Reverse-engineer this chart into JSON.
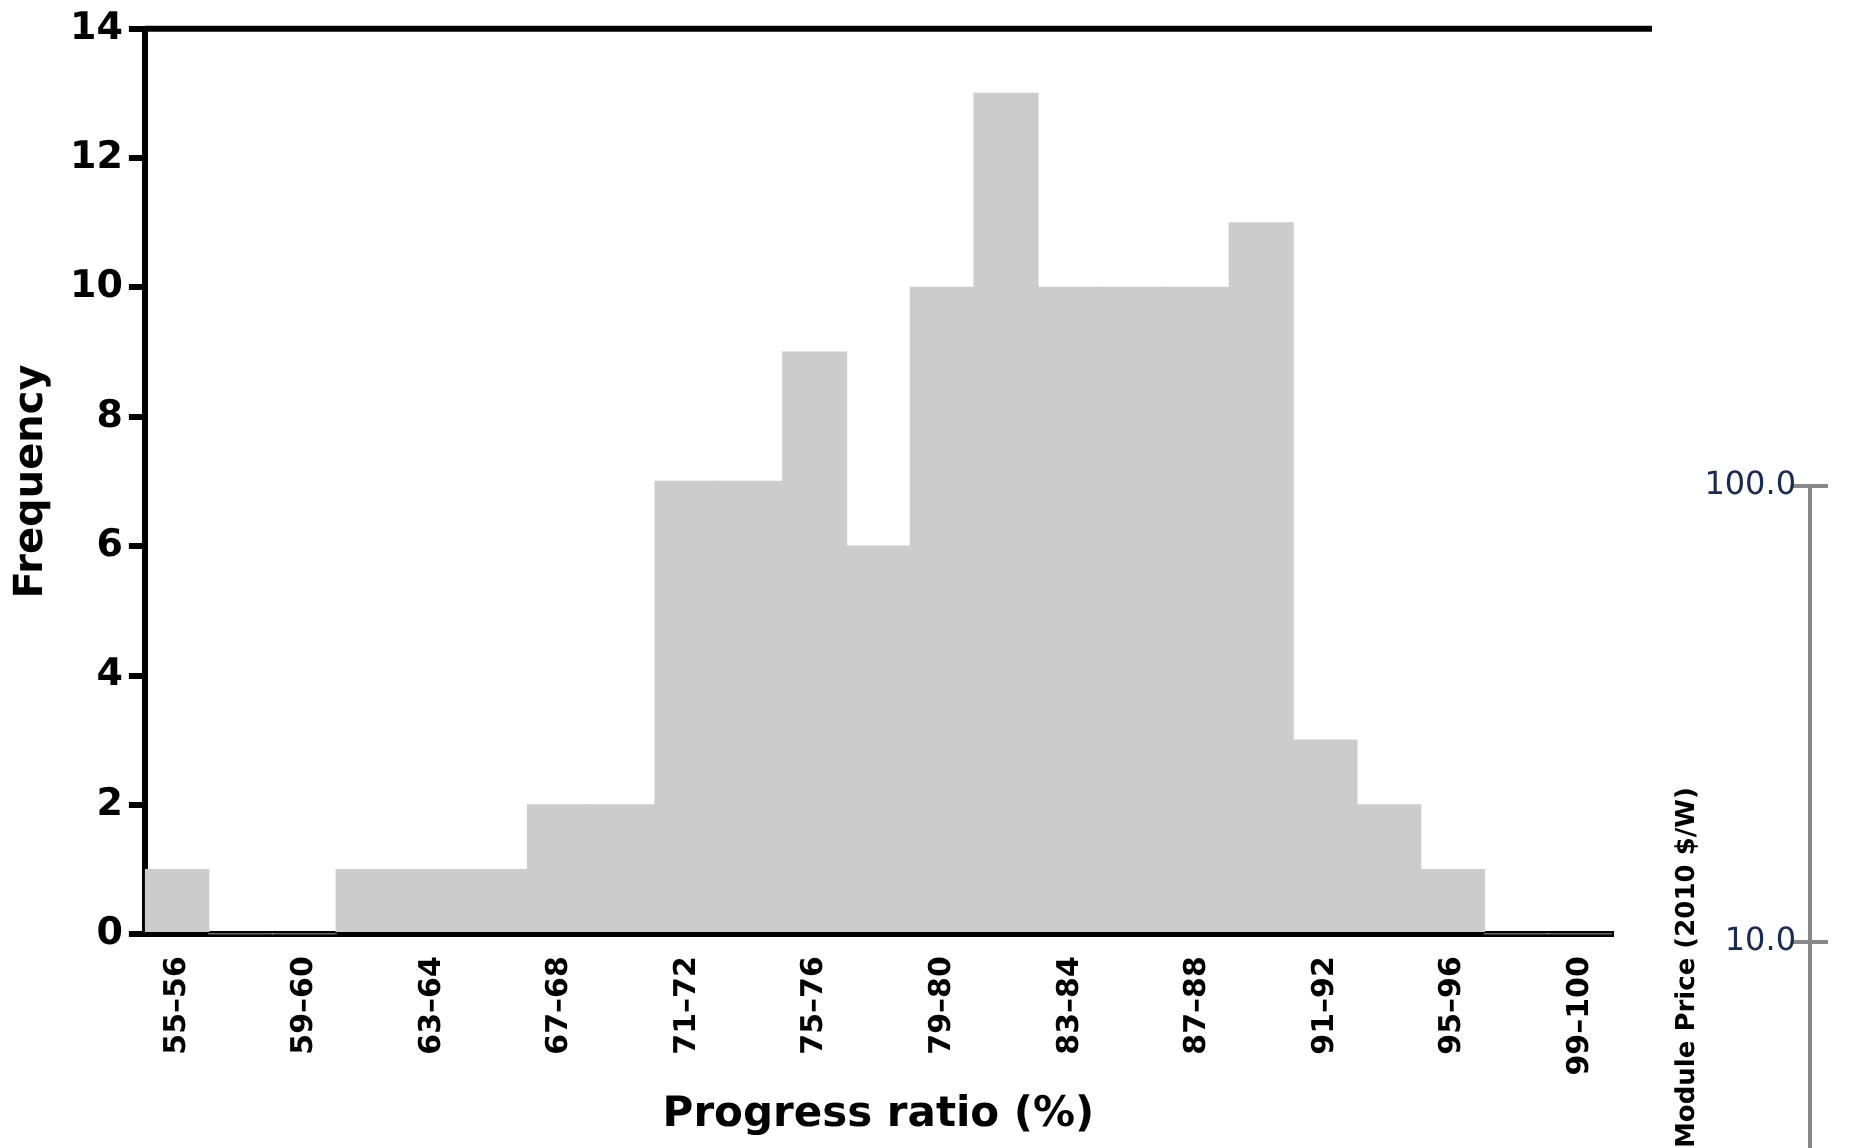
{
  "chart_data": [
    {
      "type": "bar",
      "xlabel": "Progress ratio (%)",
      "ylabel": "Frequency",
      "categories": [
        "55–56",
        null,
        "59–60",
        null,
        "63–64",
        null,
        "67–68",
        null,
        "71–72",
        null,
        "75–76",
        null,
        "79–80",
        null,
        "83–84",
        null,
        "87–88",
        null,
        "91–92",
        null,
        "95–96",
        null,
        "99–100"
      ],
      "values": [
        1,
        0,
        0,
        1,
        1,
        1,
        2,
        2,
        7,
        7,
        9,
        6,
        10,
        13,
        10,
        10,
        10,
        11,
        3,
        2,
        1,
        0,
        0
      ],
      "color": "#cccccc",
      "ylim": [
        0,
        14
      ],
      "yticks": [
        0,
        2,
        4,
        6,
        8,
        10,
        12,
        14
      ],
      "grid": false,
      "legend": false
    },
    {
      "type": "other",
      "annotations": [
        "Module Price (2010 $/W)",
        "100.0",
        "10.0"
      ]
    }
  ]
}
